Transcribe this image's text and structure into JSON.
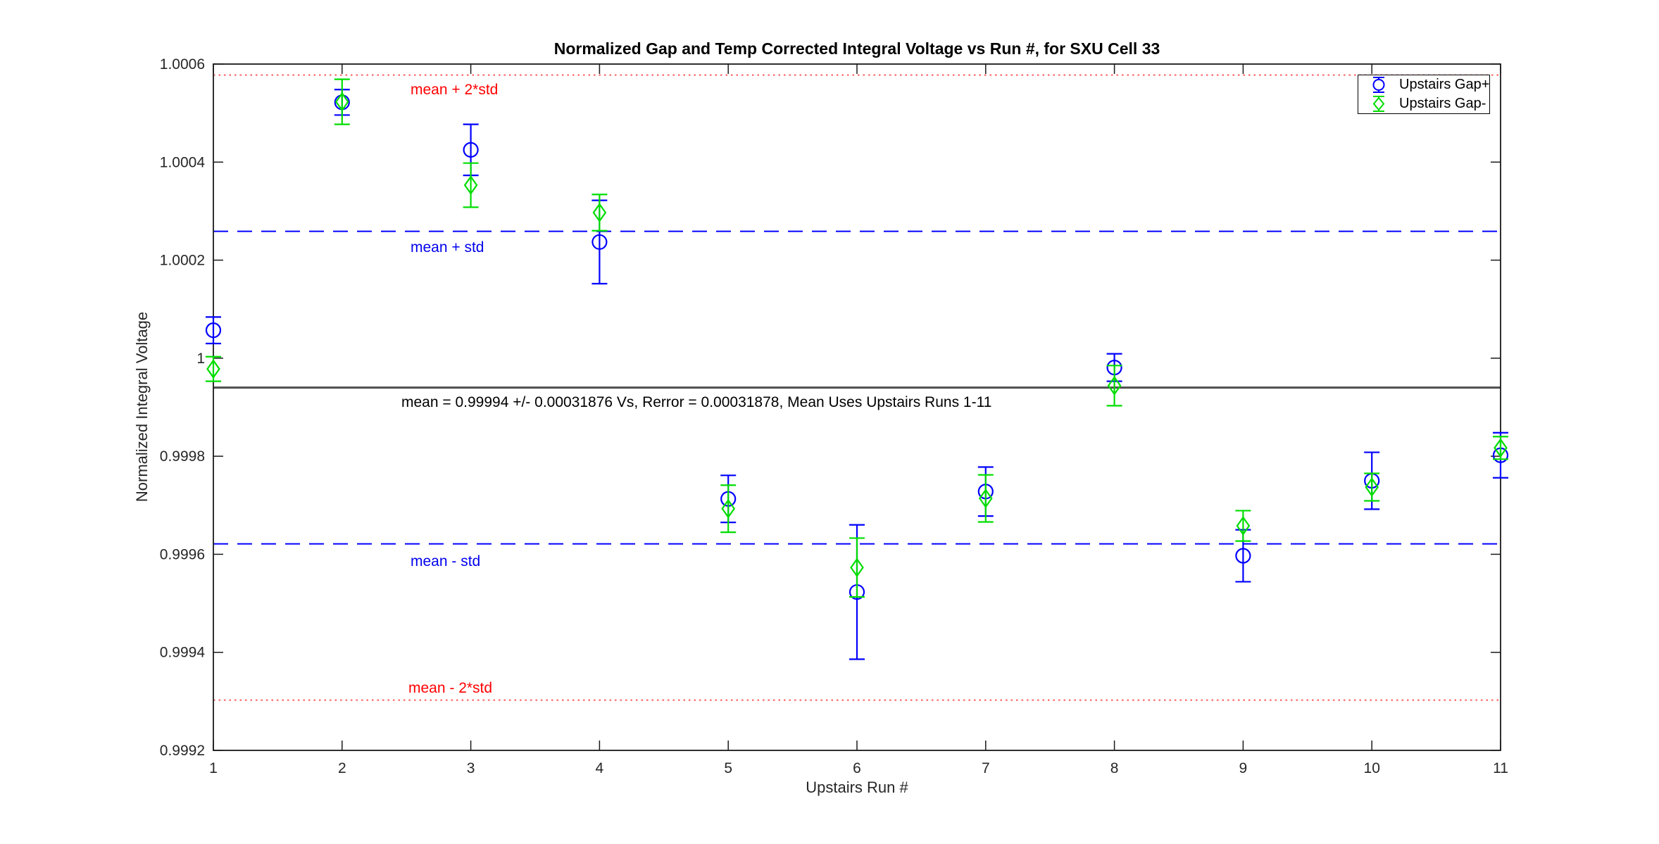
{
  "page": {
    "background": "#ffffff"
  },
  "chart_data": {
    "type": "scatter",
    "title": "Normalized Gap and Temp Corrected Integral Voltage vs Run #, for SXU Cell 33",
    "xlabel": "Upstairs Run #",
    "ylabel": "Normalized Integral Voltage",
    "xlim": [
      1,
      11
    ],
    "ylim": [
      0.9992,
      1.0006
    ],
    "grid": false,
    "legend_position": "top-right",
    "xticks": [
      "1",
      "2",
      "3",
      "4",
      "5",
      "6",
      "7",
      "8",
      "9",
      "10",
      "11"
    ],
    "yticks": [
      {
        "value": 1.0006,
        "label": "1.0006"
      },
      {
        "value": 1.0004,
        "label": "1.0004"
      },
      {
        "value": 1.0002,
        "label": "1.0002"
      },
      {
        "value": 1.0,
        "label": "1"
      },
      {
        "value": 0.9998,
        "label": "0.9998"
      },
      {
        "value": 0.9996,
        "label": "0.9996"
      },
      {
        "value": 0.9994,
        "label": "0.9994"
      },
      {
        "value": 0.9992,
        "label": "0.9992"
      }
    ],
    "x": [
      1,
      2,
      3,
      4,
      5,
      6,
      7,
      8,
      9,
      10,
      11
    ],
    "series": [
      {
        "name": "Upstairs Gap+",
        "marker": "circle",
        "color": "#0000ff",
        "values": [
          1.000057,
          1.000522,
          1.000425,
          1.000237,
          0.999713,
          0.999523,
          0.999728,
          0.999981,
          0.999597,
          0.99975,
          0.999802
        ],
        "errors": [
          2.7e-05,
          2.6e-05,
          5.2e-05,
          8.5e-05,
          4.8e-05,
          0.000137,
          5e-05,
          2.8e-05,
          5.3e-05,
          5.8e-05,
          4.6e-05
        ]
      },
      {
        "name": "Upstairs Gap-",
        "marker": "diamond",
        "color": "#00dd00",
        "values": [
          0.999978,
          1.000523,
          1.000353,
          1.000297,
          0.999693,
          0.999573,
          0.999714,
          0.999944,
          0.999658,
          0.999737,
          0.999817
        ],
        "errors": [
          2.5e-05,
          4.6e-05,
          4.5e-05,
          3.7e-05,
          4.8e-05,
          6e-05,
          4.8e-05,
          4.1e-05,
          3.1e-05,
          2.8e-05,
          2.3e-05
        ]
      }
    ],
    "reference_lines": [
      {
        "id": "mean_plus_2std",
        "label": "mean + 2*std",
        "value": 1.00057752,
        "style": "dotted",
        "color": "#ff5a5a",
        "label_color": "#ff0000"
      },
      {
        "id": "mean_plus_std",
        "label": "mean + std",
        "value": 1.00025876,
        "style": "dashed",
        "color": "#0000ff",
        "label_color": "#0000ee"
      },
      {
        "id": "mean",
        "label": "mean = 0.99994 +/- 0.00031876 Vs, Rerror = 0.00031878, Mean Uses Upstairs Runs 1-11",
        "value": 0.99994,
        "style": "solid",
        "color": "#4d4d4d",
        "label_color": "#000000"
      },
      {
        "id": "mean_minus_std",
        "label": "mean - std",
        "value": 0.99962124,
        "style": "dashed",
        "color": "#0000ff",
        "label_color": "#0000ee"
      },
      {
        "id": "mean_minus_2std",
        "label": "mean - 2*std",
        "value": 0.99930248,
        "style": "dotted",
        "color": "#ff5a5a",
        "label_color": "#ff0000"
      }
    ]
  }
}
